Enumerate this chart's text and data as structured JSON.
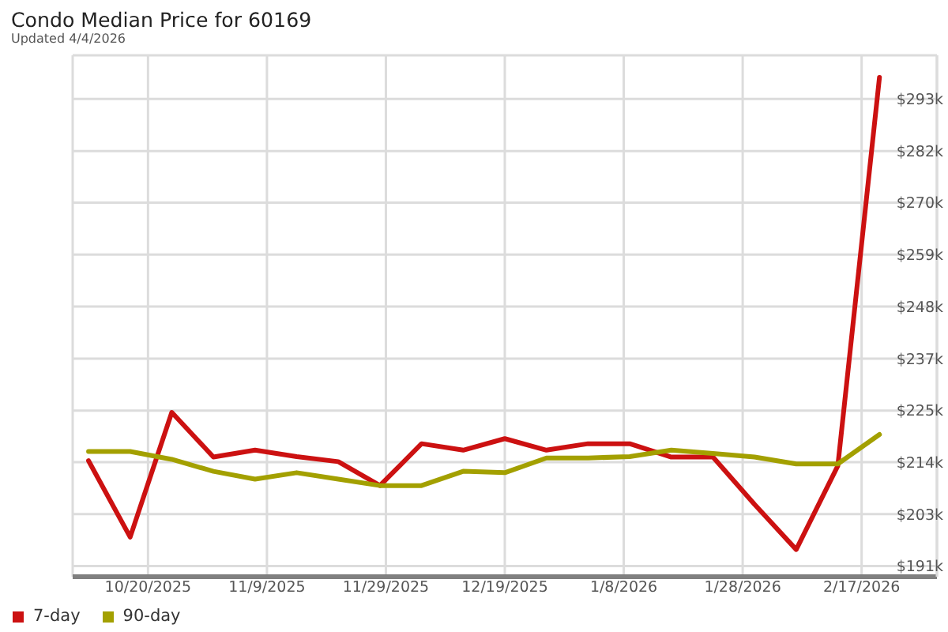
{
  "chart_data": {
    "type": "line",
    "title": "Condo Median Price for 60169",
    "subtitle": "Updated 4/4/2026",
    "x": [
      "2025-10-10",
      "2025-10-17",
      "2025-10-24",
      "2025-10-31",
      "2025-11-07",
      "2025-11-14",
      "2025-11-21",
      "2025-11-28",
      "2025-12-05",
      "2025-12-12",
      "2025-12-19",
      "2025-12-26",
      "2026-01-02",
      "2026-01-09",
      "2026-01-16",
      "2026-01-23",
      "2026-01-30",
      "2026-02-06",
      "2026-02-13",
      "2026-02-20"
    ],
    "series": [
      {
        "name": "7-day",
        "color": "#cc1111",
        "values": [
          214.3,
          197.7,
          224.8,
          215.1,
          216.6,
          215.2,
          214.1,
          208.9,
          218.0,
          216.6,
          219.1,
          216.6,
          218.0,
          218.0,
          215.1,
          215.1,
          204.8,
          195.0,
          213.2,
          297.6
        ]
      },
      {
        "name": "90-day",
        "color": "#a3a000",
        "values": [
          216.3,
          216.3,
          214.6,
          212.0,
          210.3,
          211.7,
          210.3,
          208.9,
          208.9,
          212.0,
          211.7,
          214.9,
          214.9,
          215.2,
          216.6,
          215.9,
          215.1,
          213.6,
          213.6,
          220.0
        ]
      }
    ],
    "xlim": [
      "2025-10-07T08:00",
      "2026-03-01T16:00"
    ],
    "xticks": [
      {
        "value": "2025-10-20",
        "label": "10/20/2025"
      },
      {
        "value": "2025-11-09",
        "label": "11/9/2025"
      },
      {
        "value": "2025-11-29",
        "label": "11/29/2025"
      },
      {
        "value": "2025-12-19",
        "label": "12/19/2025"
      },
      {
        "value": "2026-01-08",
        "label": "1/8/2026"
      },
      {
        "value": "2026-01-28",
        "label": "1/28/2026"
      },
      {
        "value": "2026-02-17",
        "label": "2/17/2026"
      }
    ],
    "ylim": [
      189.1,
      302.4
    ],
    "yticks": [
      {
        "value": 191.4,
        "label": "$191k"
      },
      {
        "value": 202.7,
        "label": "$203k"
      },
      {
        "value": 214.0,
        "label": "$214k"
      },
      {
        "value": 225.2,
        "label": "$225k"
      },
      {
        "value": 236.5,
        "label": "$237k"
      },
      {
        "value": 247.8,
        "label": "$248k"
      },
      {
        "value": 259.1,
        "label": "$259k"
      },
      {
        "value": 270.4,
        "label": "$270k"
      },
      {
        "value": 281.6,
        "label": "$282k"
      },
      {
        "value": 292.9,
        "label": "$293k"
      }
    ],
    "grid": true,
    "legend": "bottom left"
  }
}
